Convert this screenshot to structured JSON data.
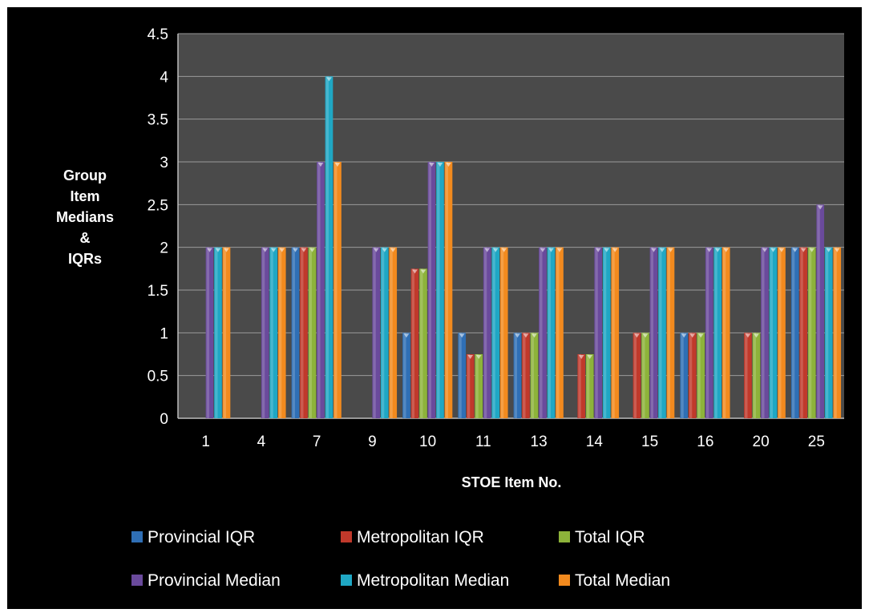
{
  "chart_data": {
    "type": "bar",
    "categories": [
      "1",
      "4",
      "7",
      "9",
      "10",
      "11",
      "13",
      "14",
      "15",
      "16",
      "20",
      "25"
    ],
    "series": [
      {
        "name": "Provincial IQR",
        "color": "#2f6fb5",
        "values": [
          0,
          0,
          2,
          0,
          1,
          1,
          1,
          0,
          0,
          1,
          0,
          2
        ]
      },
      {
        "name": "Metropolitan IQR",
        "color": "#c0392b",
        "values": [
          0,
          0,
          2,
          0,
          1.75,
          0.75,
          1,
          0.75,
          1,
          1,
          1,
          2
        ]
      },
      {
        "name": "Total IQR",
        "color": "#8db33a",
        "values": [
          0,
          0,
          2,
          0,
          1.75,
          0.75,
          1,
          0.75,
          1,
          1,
          1,
          2
        ]
      },
      {
        "name": "Provincial Median",
        "color": "#6a4a9c",
        "values": [
          2,
          2,
          3,
          2,
          3,
          2,
          2,
          2,
          2,
          2,
          2,
          2.5
        ]
      },
      {
        "name": "Metropolitan Median",
        "color": "#1fa7c4",
        "values": [
          2,
          2,
          4,
          2,
          3,
          2,
          2,
          2,
          2,
          2,
          2,
          2
        ]
      },
      {
        "name": "Total Median",
        "color": "#f28a1e",
        "values": [
          2,
          2,
          3,
          2,
          3,
          2,
          2,
          2,
          2,
          2,
          2,
          2
        ]
      }
    ],
    "xlabel": "STOE Item  No.",
    "ylabel_lines": [
      "Group",
      "Item",
      "Medians",
      "&",
      "IQRs"
    ],
    "yticks": [
      "0",
      "0.5",
      "1",
      "1.5",
      "2",
      "2.5",
      "3",
      "3.5",
      "4",
      "4.5"
    ],
    "ylim": [
      0,
      4.5
    ],
    "grid": true,
    "legend_position": "bottom",
    "plot_background": "#4a4a4a",
    "figure_background": "#000000"
  }
}
